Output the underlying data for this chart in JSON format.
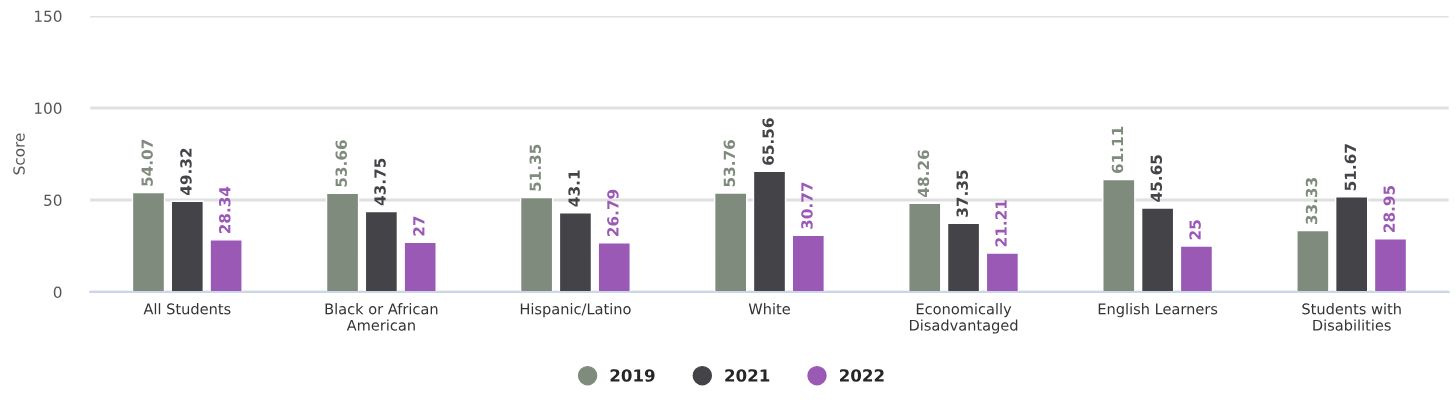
{
  "chart_data": {
    "type": "bar",
    "ylabel": "Score",
    "categories": [
      "All Students",
      "Black or African\nAmerican",
      "Hispanic/Latino",
      "White",
      "Economically\nDisadvantaged",
      "English Learners",
      "Students with\nDisabilities"
    ],
    "series": [
      {
        "name": "2019",
        "color": "#7f8c7d",
        "values": [
          54.07,
          53.66,
          51.35,
          53.76,
          48.26,
          61.11,
          33.33
        ]
      },
      {
        "name": "2021",
        "color": "#434348",
        "values": [
          49.32,
          43.75,
          43.1,
          65.56,
          37.35,
          45.65,
          51.67
        ]
      },
      {
        "name": "2022",
        "color": "#9b59b6",
        "values": [
          28.34,
          27,
          26.79,
          30.77,
          21.21,
          25,
          28.95
        ]
      }
    ],
    "ylim": [
      0,
      150
    ],
    "yticks": [
      0,
      50,
      100,
      150
    ],
    "grid": "y",
    "legend": "bottom",
    "data_labels": true
  }
}
